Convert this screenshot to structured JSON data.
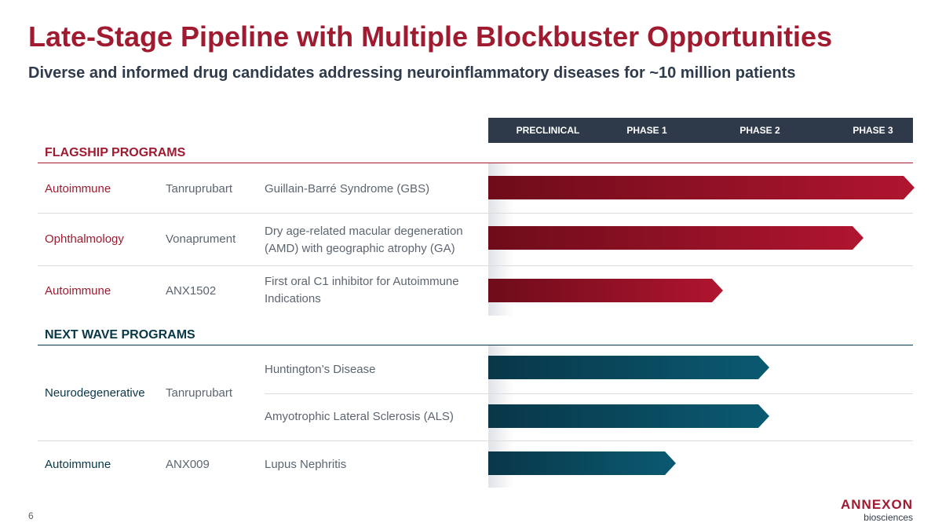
{
  "title": "Late-Stage Pipeline with Multiple Blockbuster Opportunities",
  "subtitle": "Diverse and informed drug candidates addressing neuroinflammatory diseases for ~10 million patients",
  "phases": [
    "PRECLINICAL",
    "PHASE 1",
    "PHASE 2",
    "PHASE 3"
  ],
  "colors": {
    "brand_red": "#a01a30",
    "dark_teal": "#083748",
    "header_navy": "#2e3a4a"
  },
  "flagship": {
    "title": "FLAGSHIP PROGRAMS",
    "rows": [
      {
        "area": "Autoimmune",
        "drug": "Tanruprubart",
        "indication": [
          "Guillain-Barré Syndrome (GBS)"
        ],
        "progress": 1.0
      },
      {
        "area": "Ophthalmology",
        "drug": "Vonaprument",
        "indication": [
          "Dry age-related macular degeneration",
          "(AMD) with geographic atrophy (GA)"
        ],
        "progress": 0.88
      },
      {
        "area": "Autoimmune",
        "drug": "ANX1502",
        "indication": [
          "First oral C1 inhibitor for Autoimmune",
          "Indications"
        ],
        "progress": 0.55
      }
    ]
  },
  "next_wave": {
    "title": "NEXT WAVE PROGRAMS",
    "rows": [
      {
        "area": "Neurodegenerative",
        "drug": "Tanruprubart",
        "indications": [
          {
            "label": "Huntington’s Disease",
            "progress": 0.66
          },
          {
            "label": "Amyotrophic Lateral Sclerosis (ALS)",
            "progress": 0.66
          }
        ]
      },
      {
        "area": "Autoimmune",
        "drug": "ANX009",
        "indication": "Lupus Nephritis",
        "progress": 0.44
      }
    ]
  },
  "footer": {
    "page_number": "6",
    "logo_brand": "ANNEXON",
    "logo_sub": "biosciences"
  }
}
